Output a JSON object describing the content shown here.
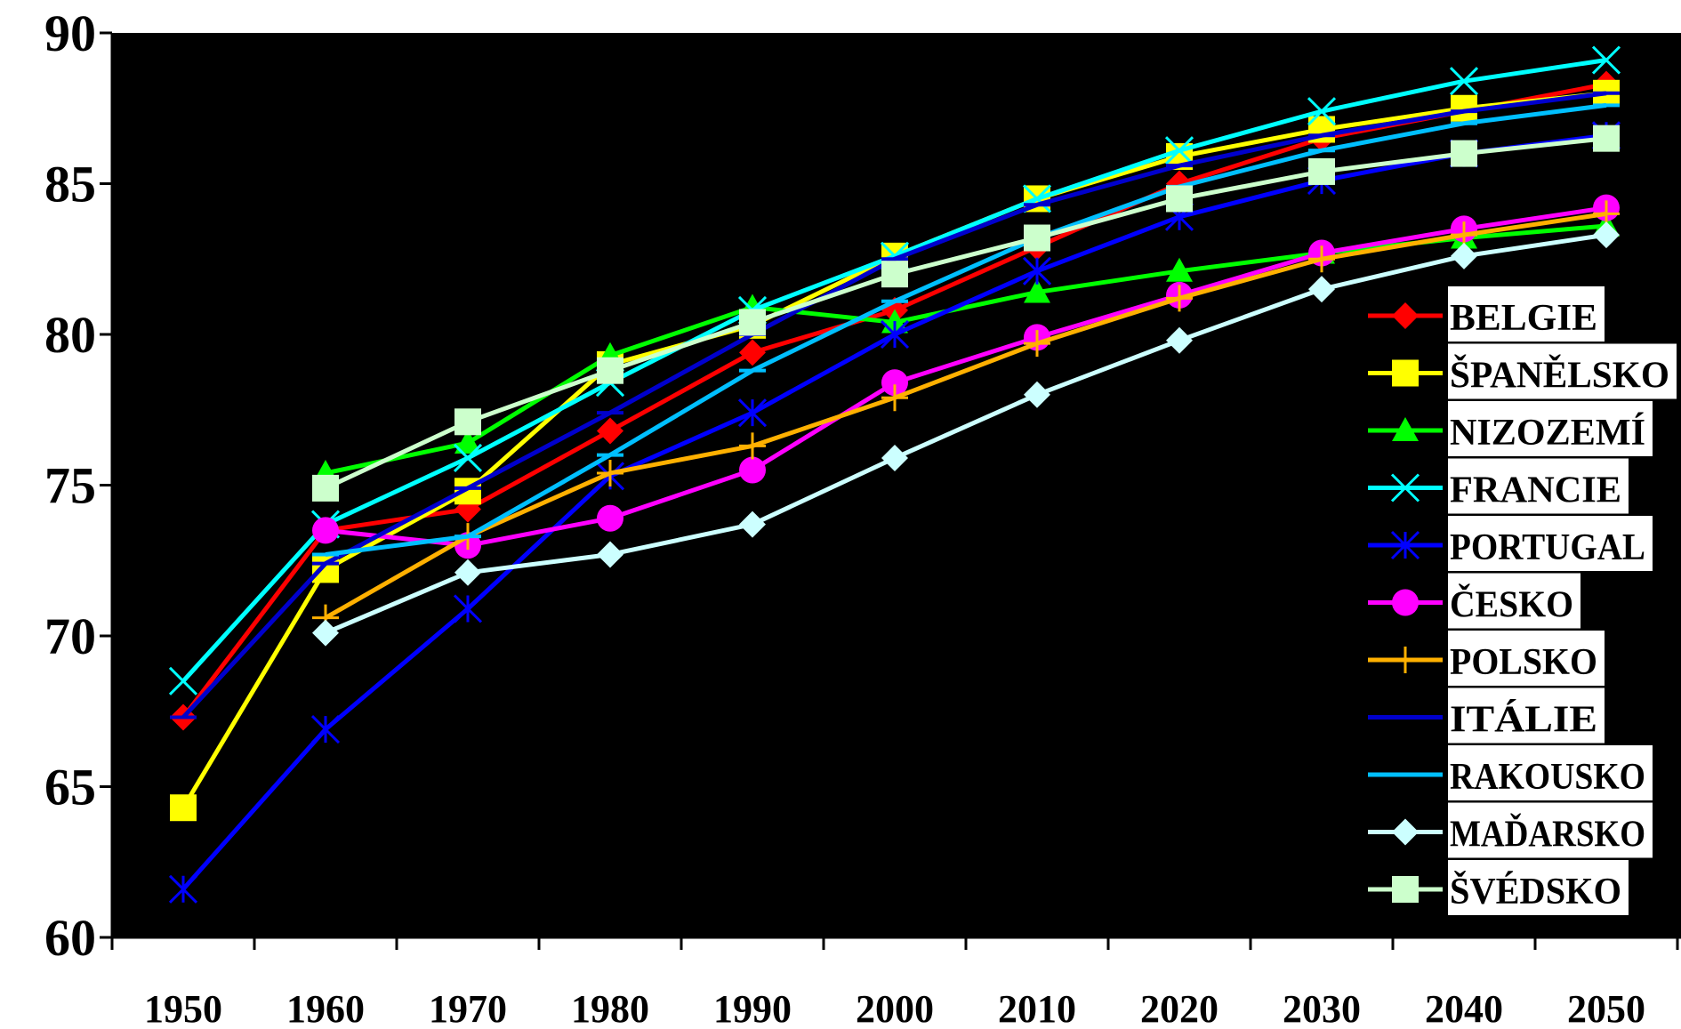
{
  "chart_data": {
    "type": "line",
    "title": "",
    "xlabel": "",
    "ylabel": "",
    "x": [
      "1950",
      "1960",
      "1970",
      "1980",
      "1990",
      "2000",
      "2010",
      "2020",
      "2030",
      "2040",
      "2050"
    ],
    "ylim": [
      60,
      90
    ],
    "yticks": [
      60,
      65,
      70,
      75,
      80,
      85,
      90
    ],
    "background": "#000000",
    "grid": false,
    "legend_position": "right",
    "series": [
      {
        "name": "BELGIE",
        "color": "#ff0000",
        "marker": "diamond",
        "values": [
          67.3,
          73.5,
          74.2,
          76.8,
          79.4,
          80.8,
          82.9,
          85.0,
          86.5,
          87.4,
          88.3
        ]
      },
      {
        "name": "ŠPANĚLSKO",
        "color": "#ffff00",
        "marker": "square",
        "values": [
          64.3,
          72.2,
          74.8,
          79.0,
          80.3,
          82.6,
          84.5,
          85.9,
          86.8,
          87.5,
          88.0
        ]
      },
      {
        "name": "NIZOZEMÍ",
        "color": "#00ff00",
        "marker": "triangle",
        "values": [
          null,
          75.4,
          76.4,
          79.3,
          80.9,
          80.4,
          81.4,
          82.1,
          82.7,
          83.2,
          83.6
        ]
      },
      {
        "name": "FRANCIE",
        "color": "#00ffff",
        "marker": "x",
        "values": [
          68.5,
          73.7,
          75.9,
          78.4,
          80.8,
          82.6,
          84.5,
          86.1,
          87.4,
          88.4,
          89.1
        ]
      },
      {
        "name": "PORTUGAL",
        "color": "#0000ff",
        "marker": "asterisk",
        "values": [
          61.6,
          66.9,
          70.9,
          75.3,
          77.4,
          80.0,
          82.1,
          83.9,
          85.1,
          86.0,
          86.6
        ]
      },
      {
        "name": "ČESKO",
        "color": "#ff00ff",
        "marker": "circle",
        "values": [
          null,
          73.5,
          73.0,
          73.9,
          75.5,
          78.4,
          79.9,
          81.3,
          82.7,
          83.5,
          84.2
        ]
      },
      {
        "name": "POLSKO",
        "color": "#ffb000",
        "marker": "plus",
        "values": [
          null,
          70.6,
          73.3,
          75.4,
          76.3,
          77.9,
          79.7,
          81.2,
          82.5,
          83.3,
          84.0
        ]
      },
      {
        "name": "ITÁLIE",
        "color": "#0000cc",
        "marker": "dash",
        "values": [
          67.3,
          72.4,
          74.9,
          77.4,
          80.0,
          82.5,
          84.3,
          85.6,
          86.6,
          87.4,
          88.0
        ]
      },
      {
        "name": "RAKOUSKO",
        "color": "#00bfff",
        "marker": "dash",
        "values": [
          null,
          72.7,
          73.3,
          76.0,
          78.8,
          81.1,
          83.2,
          84.9,
          86.1,
          87.0,
          87.6
        ]
      },
      {
        "name": "MAĎARSKO",
        "color": "#ccffff",
        "marker": "diamond",
        "values": [
          null,
          70.1,
          72.1,
          72.7,
          73.7,
          75.9,
          78.0,
          79.8,
          81.5,
          82.6,
          83.3
        ]
      },
      {
        "name": "ŠVÉDSKO",
        "color": "#ccffcc",
        "marker": "square",
        "values": [
          null,
          74.9,
          77.1,
          78.8,
          80.4,
          82.0,
          83.2,
          84.5,
          85.4,
          86.0,
          86.5
        ]
      }
    ]
  }
}
